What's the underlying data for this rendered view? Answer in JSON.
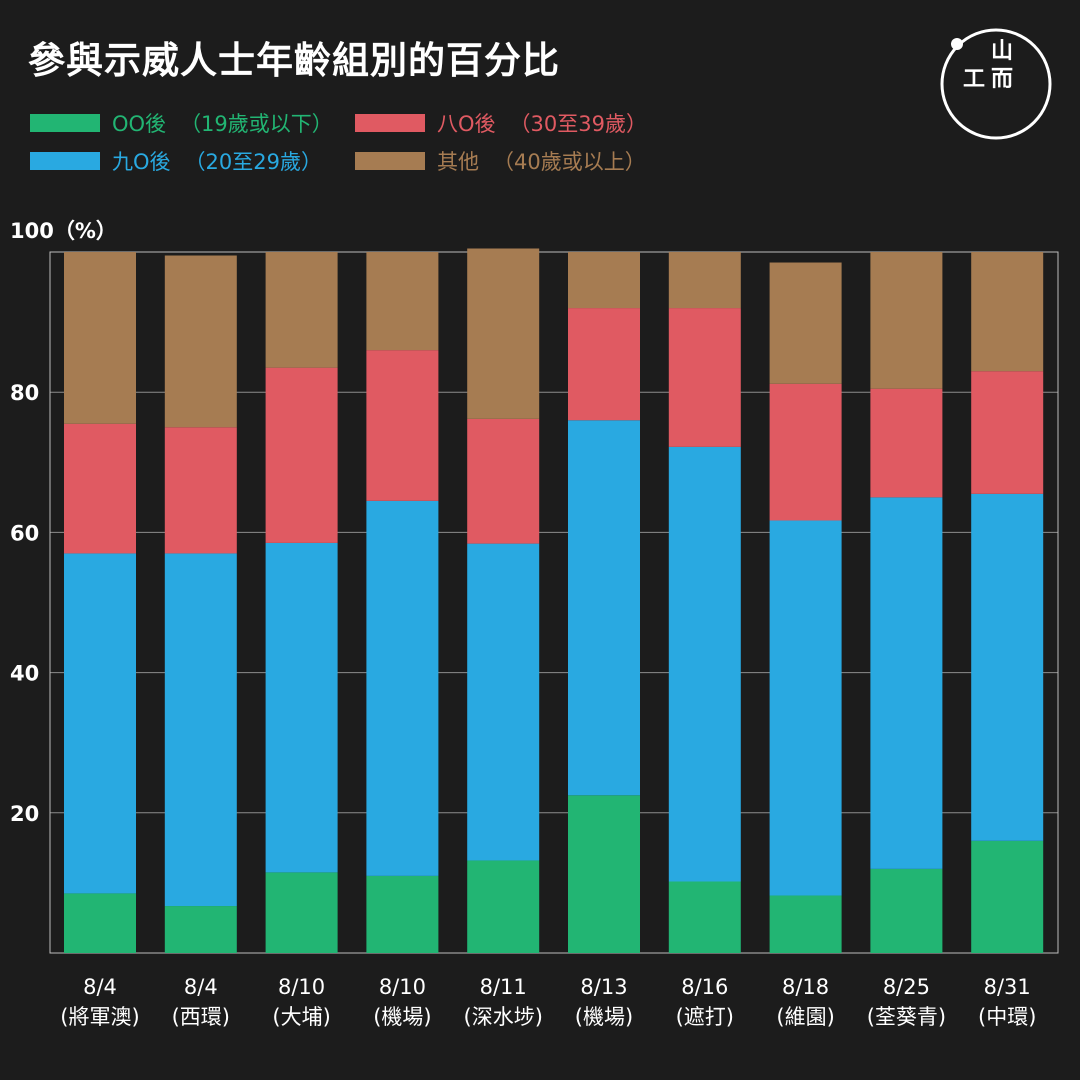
{
  "title": "參與示威人士年齡組別的百分比",
  "logo": {
    "icon": "initium-logo-icon",
    "glyphs": [
      "山",
      "工",
      "而"
    ]
  },
  "legend": [
    {
      "label": "OO後",
      "range": "（19歲或以下）",
      "color": "#22b573"
    },
    {
      "label": "八O後",
      "range": "（30至39歲）",
      "color": "#e05a62"
    },
    {
      "label": "九O後",
      "range": "（20至29歲）",
      "color": "#29a9e1"
    },
    {
      "label": "其他",
      "range": "（40歲或以上）",
      "color": "#a67c52"
    }
  ],
  "chart_data": {
    "type": "bar",
    "stacked": true,
    "ylabel": "100（%）",
    "ylim": [
      0,
      100
    ],
    "yticks": [
      20,
      40,
      60,
      80
    ],
    "grid": true,
    "categories": [
      [
        "8/4",
        "(將軍澳)"
      ],
      [
        "8/4",
        "(西環)"
      ],
      [
        "8/10",
        "(大埔)"
      ],
      [
        "8/10",
        "(機場)"
      ],
      [
        "8/11",
        "(深水埗)"
      ],
      [
        "8/13",
        "(機場)"
      ],
      [
        "8/16",
        "(遮打)"
      ],
      [
        "8/18",
        "(維園)"
      ],
      [
        "8/25",
        "(荃葵青)"
      ],
      [
        "8/31",
        "(中環)"
      ]
    ],
    "series": [
      {
        "name": "OO後",
        "color": "#22b573",
        "values": [
          8.5,
          6.7,
          11.5,
          11.0,
          13.2,
          22.5,
          10.2,
          8.2,
          12.0,
          16.0
        ]
      },
      {
        "name": "九O後",
        "color": "#29a9e1",
        "values": [
          48.5,
          50.3,
          47.0,
          53.5,
          45.2,
          53.5,
          62.0,
          53.5,
          53.0,
          49.5
        ]
      },
      {
        "name": "八O後",
        "color": "#e05a62",
        "values": [
          18.5,
          18.0,
          25.0,
          21.5,
          17.8,
          16.0,
          19.8,
          19.5,
          15.5,
          17.5
        ]
      },
      {
        "name": "其他",
        "color": "#a67c52",
        "values": [
          24.5,
          24.5,
          16.5,
          14.0,
          24.3,
          8.0,
          8.0,
          17.3,
          19.5,
          17.0
        ]
      }
    ]
  }
}
